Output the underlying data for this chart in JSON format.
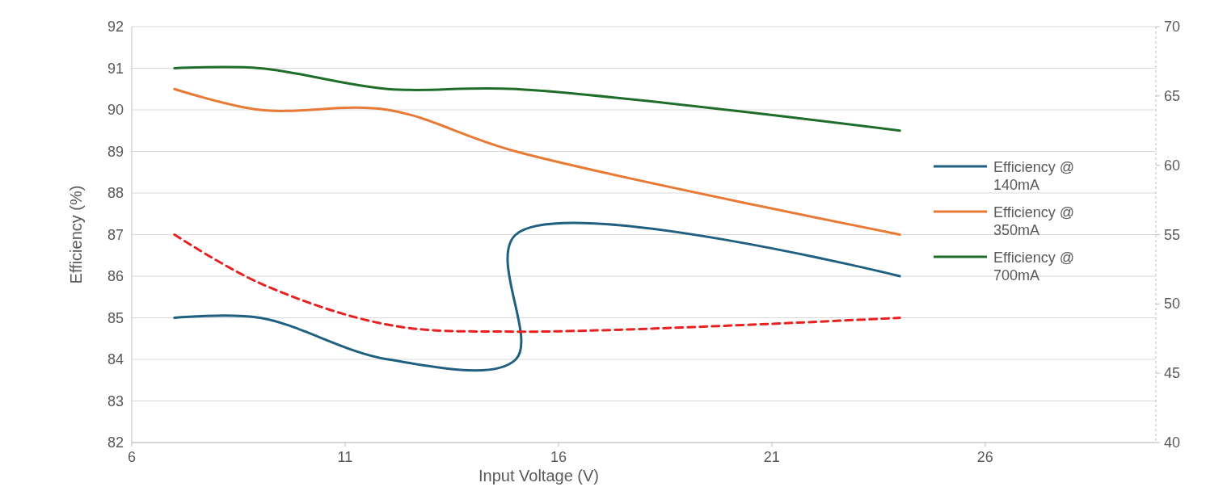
{
  "chart_data": {
    "type": "line",
    "xlabel": "Input Voltage (V)",
    "ylabel": "Efficiency (%)",
    "xlim": [
      6,
      30
    ],
    "xticks": [
      6,
      11,
      16,
      21,
      26
    ],
    "ylim": [
      82,
      92
    ],
    "yticks": [
      82,
      83,
      84,
      85,
      86,
      87,
      88,
      89,
      90,
      91,
      92
    ],
    "y2lim": [
      40,
      70
    ],
    "y2ticks": [
      40,
      45,
      50,
      55,
      60,
      65,
      70
    ],
    "grid": "y",
    "legend": "right",
    "series": [
      {
        "name": "Efficiency @ 140mA",
        "color": "#1f5f7f",
        "x": [
          7,
          9,
          12,
          15,
          15,
          24
        ],
        "values": [
          85,
          85,
          84,
          84,
          87,
          86
        ]
      },
      {
        "name": "Efficiency @ 350mA",
        "color": "#e87a35",
        "x": [
          7,
          9,
          12,
          15,
          24
        ],
        "values": [
          90.5,
          90,
          90,
          89,
          87
        ]
      },
      {
        "name": "Efficiency @ 700mA",
        "color": "#1e6e2a",
        "x": [
          7,
          9,
          12,
          15,
          24
        ],
        "values": [
          91,
          91,
          90.5,
          90.5,
          89.5
        ]
      },
      {
        "color": "#e82020",
        "axis": "y2",
        "line_style": "dashed",
        "x": [
          7,
          9,
          12,
          15,
          24
        ],
        "values": [
          55,
          51.5,
          48.5,
          48,
          49
        ]
      }
    ]
  }
}
